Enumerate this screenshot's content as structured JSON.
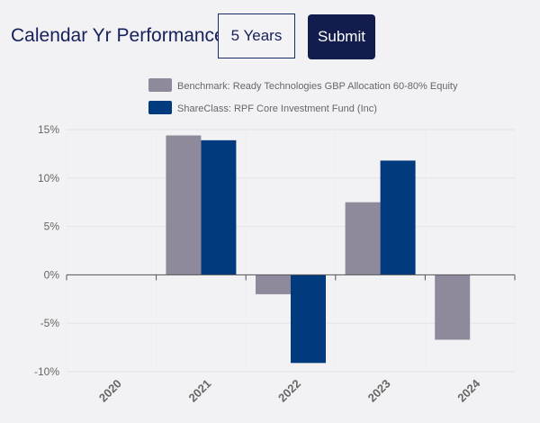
{
  "header": {
    "title": "Calendar Yr Performance",
    "period_value": "5 Years",
    "submit_label": "Submit"
  },
  "chart_data": {
    "type": "bar",
    "categories": [
      "2020",
      "2021",
      "2022",
      "2023",
      "2024"
    ],
    "series": [
      {
        "name": "Benchmark: Ready Technologies GBP Allocation 60-80% Equity",
        "color": "#8e8a9c",
        "values": [
          0,
          14.4,
          -2.0,
          7.5,
          -6.7
        ]
      },
      {
        "name": "ShareClass: RPF Core Investment Fund (Inc)",
        "color": "#023a7e",
        "values": [
          0,
          13.9,
          -9.1,
          11.8,
          0
        ]
      }
    ],
    "yticks": [
      "15%",
      "10%",
      "5%",
      "0%",
      "-5%",
      "-10%"
    ],
    "ylim": [
      -10,
      15
    ],
    "legend": "top",
    "grid": true
  }
}
